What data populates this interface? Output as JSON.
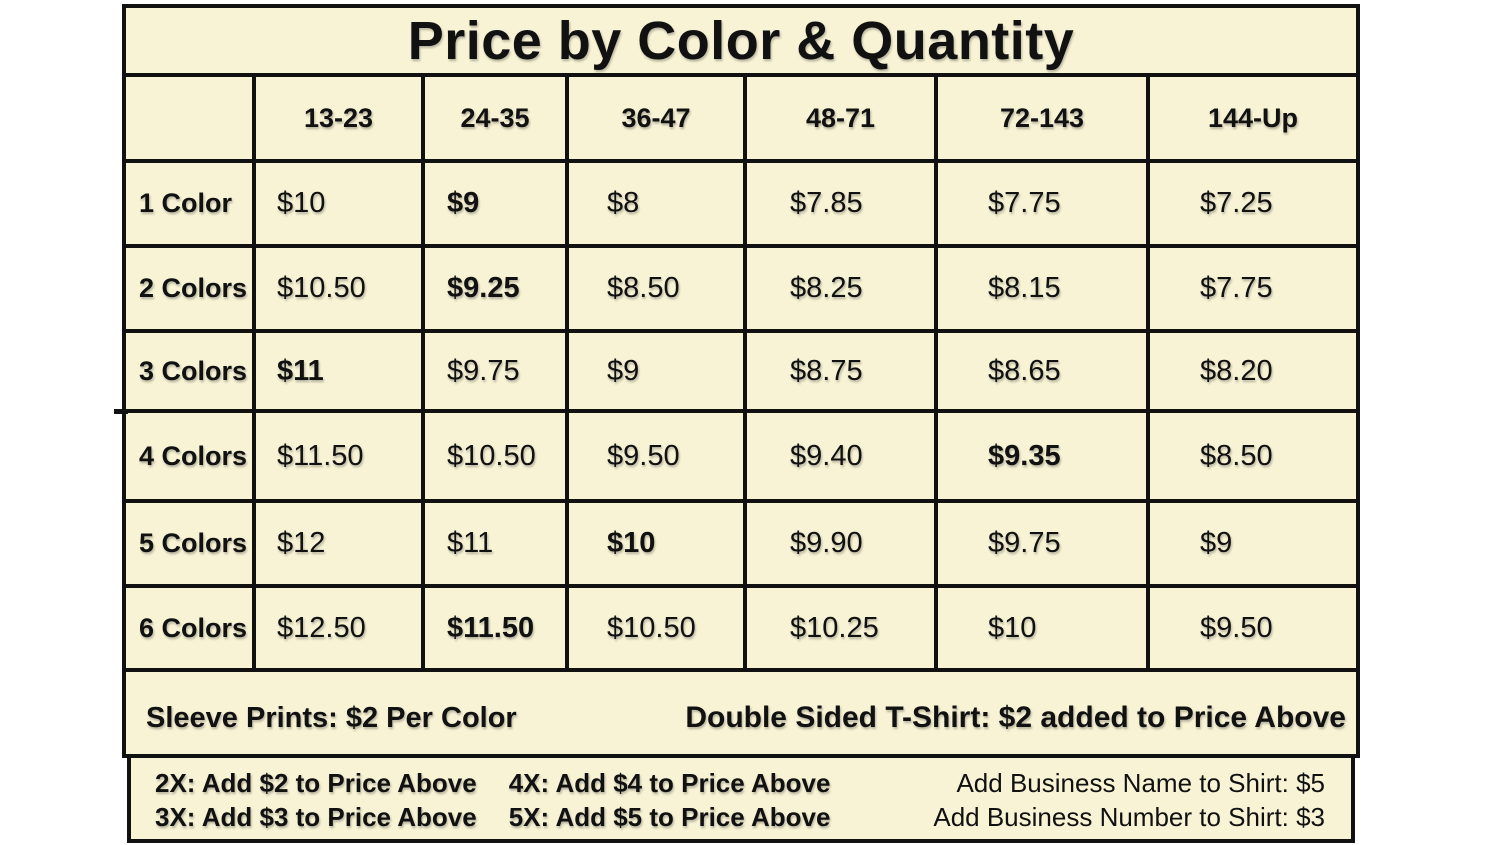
{
  "title": "Price by Color & Quantity",
  "table": {
    "quantity_headers": [
      "13-23",
      "24-35",
      "36-47",
      "48-71",
      "72-143",
      "144-Up"
    ],
    "rows": [
      {
        "label": "1 Color",
        "prices": [
          "$10",
          "$9",
          "$8",
          "$7.85",
          "$7.75",
          "$7.25"
        ],
        "bold_col": 1
      },
      {
        "label": "2 Colors",
        "prices": [
          "$10.50",
          "$9.25",
          "$8.50",
          "$8.25",
          "$8.15",
          "$7.75"
        ],
        "bold_col": 1
      },
      {
        "label": "3 Colors",
        "prices": [
          "$11",
          "$9.75",
          "$9",
          "$8.75",
          "$8.65",
          "$8.20"
        ],
        "bold_col": 0
      },
      {
        "label": "4 Colors",
        "prices": [
          "$11.50",
          "$10.50",
          "$9.50",
          "$9.40",
          "$9.35",
          "$8.50"
        ],
        "bold_col": 4
      },
      {
        "label": "5 Colors",
        "prices": [
          "$12",
          "$11",
          "$10",
          "$9.90",
          "$9.75",
          "$9"
        ],
        "bold_col": 2
      },
      {
        "label": "6 Colors",
        "prices": [
          "$12.50",
          "$11.50",
          "$10.50",
          "$10.25",
          "$10",
          "$9.50"
        ],
        "bold_col": 1
      }
    ]
  },
  "footer": {
    "sleeve_note": "Sleeve Prints: $2 Per Color",
    "double_sided_note": "Double Sided T-Shirt: $2 added to Price Above",
    "size_upcharges": {
      "x2": "2X: Add $2 to Price Above",
      "x3": "3X: Add $3 to Price Above",
      "x4": "4X: Add $4 to Price Above",
      "x5": "5X: Add $5 to Price Above"
    },
    "business_name_note": "Add Business Name to Shirt: $5",
    "business_number_note": "Add Business Number to Shirt: $3"
  },
  "colors": {
    "background": "#f8f3d5",
    "border": "#111111",
    "page": "#ffffff",
    "text": "#111111"
  }
}
